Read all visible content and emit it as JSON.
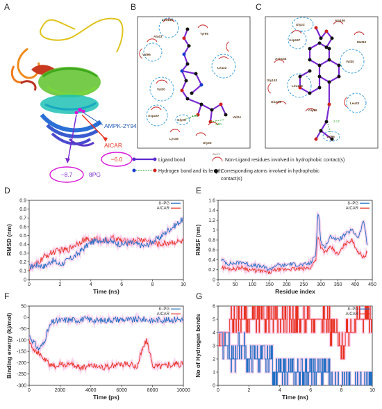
{
  "figure": {
    "panel_letters": [
      "A",
      "B",
      "C",
      "D",
      "E",
      "F",
      "G"
    ],
    "protein_labels": {
      "complex": "AMPK-2Y94",
      "ligand1": "AICAR",
      "ligand2": "8PG",
      "score1": "−6.0",
      "score2": "−8.7"
    },
    "panelB": {
      "residues": [
        "Leu146",
        "Tyr95",
        "Ala43",
        "Val96",
        "Leu22",
        "Val30",
        "Asp157",
        "Gly25",
        "Lys45",
        "Gly23",
        "Val24"
      ],
      "distances": [
        "2.98",
        "2.80"
      ]
    },
    "panelC": {
      "residues": [
        "Gly23",
        "Ala156",
        "Asp157",
        "Met93",
        "Asn144",
        "Val30",
        "Gly143",
        "Leu146",
        "Glu100",
        "Leu22",
        "Gly99",
        "Val96"
      ],
      "distances": [
        "3.17"
      ]
    },
    "key": {
      "ligand_bond": "Ligand bond",
      "hbond": "Hydrogen bond and its length",
      "nonligand": "Non-Ligand residues involved   in hydrophobic contact(s)",
      "nonligand_sample": "Glu 71",
      "atoms_line1": "Corresponding atoms involved in hydrophobic",
      "atoms_line2": "contact(s)"
    },
    "colors": {
      "pg8": "#1f6fc4",
      "aicar": "#e8301e"
    }
  },
  "chart_data": [
    {
      "panel": "D",
      "type": "line",
      "xlabel": "Time (ns)",
      "ylabel": "RMSD (nm)",
      "xlim": [
        0,
        10
      ],
      "ylim": [
        0,
        0.9
      ],
      "xticks": [
        0,
        2,
        4,
        6,
        8,
        10
      ],
      "yticks": [
        0,
        0.1,
        0.2,
        0.3,
        0.4,
        0.5,
        0.6,
        0.7,
        0.8,
        0.9
      ],
      "legend": "top-right",
      "series": [
        {
          "name": "8−PG",
          "color": "#1f6fc4",
          "x": [
            0,
            0.5,
            1,
            1.5,
            2,
            2.5,
            3,
            3.5,
            4,
            4.5,
            5,
            5.5,
            6,
            6.5,
            7,
            7.5,
            8,
            8.5,
            9,
            9.5,
            10
          ],
          "y": [
            0.14,
            0.17,
            0.15,
            0.22,
            0.17,
            0.22,
            0.27,
            0.35,
            0.42,
            0.45,
            0.45,
            0.42,
            0.4,
            0.42,
            0.4,
            0.38,
            0.43,
            0.48,
            0.56,
            0.62,
            0.69
          ]
        },
        {
          "name": "AICAR",
          "color": "#e8301e",
          "x": [
            0,
            0.5,
            1,
            1.5,
            2,
            2.5,
            3,
            3.5,
            4,
            4.5,
            5,
            5.5,
            6,
            6.5,
            7,
            7.5,
            8,
            8.5,
            9,
            9.5,
            10
          ],
          "y": [
            0.12,
            0.18,
            0.26,
            0.31,
            0.33,
            0.34,
            0.4,
            0.45,
            0.45,
            0.46,
            0.44,
            0.47,
            0.44,
            0.43,
            0.45,
            0.45,
            0.42,
            0.4,
            0.42,
            0.43,
            0.43
          ]
        }
      ]
    },
    {
      "panel": "E",
      "type": "line",
      "xlabel": "Residue index",
      "ylabel": "RMSF (nm)",
      "xlim": [
        0,
        450
      ],
      "ylim": [
        0,
        1.6
      ],
      "xticks": [
        0,
        50,
        100,
        150,
        200,
        250,
        300,
        350,
        400,
        450
      ],
      "yticks": [
        0,
        0.2,
        0.4,
        0.6,
        0.8,
        1.0,
        1.2,
        1.4,
        1.6
      ],
      "legend": "top-right",
      "series": [
        {
          "name": "8−PG",
          "color": "#1f6fc4",
          "x": [
            10,
            30,
            50,
            70,
            90,
            110,
            130,
            150,
            170,
            190,
            210,
            230,
            250,
            270,
            285,
            292,
            300,
            310,
            330,
            350,
            370,
            390,
            410,
            425,
            435
          ],
          "y": [
            0.4,
            0.32,
            0.33,
            0.36,
            0.3,
            0.28,
            0.26,
            0.2,
            0.3,
            0.28,
            0.32,
            0.3,
            0.3,
            0.33,
            0.5,
            1.45,
            0.75,
            0.65,
            0.88,
            0.8,
            0.9,
            1.0,
            0.85,
            1.2,
            0.7
          ]
        },
        {
          "name": "AICAR",
          "color": "#e8301e",
          "x": [
            10,
            30,
            50,
            70,
            90,
            110,
            130,
            150,
            170,
            190,
            210,
            230,
            250,
            270,
            285,
            292,
            300,
            310,
            330,
            350,
            370,
            390,
            410,
            425,
            435
          ],
          "y": [
            0.25,
            0.22,
            0.22,
            0.25,
            0.2,
            0.18,
            0.17,
            0.14,
            0.2,
            0.2,
            0.22,
            0.21,
            0.22,
            0.24,
            0.4,
            0.9,
            0.65,
            0.55,
            0.65,
            0.5,
            0.72,
            0.8,
            0.55,
            0.45,
            0.55
          ]
        }
      ]
    },
    {
      "panel": "F",
      "type": "line",
      "xlabel": "Time (ps)",
      "ylabel": "Binding energy (kj/mol)",
      "xlim": [
        0,
        10000
      ],
      "ylim": [
        -300,
        50
      ],
      "xticks": [
        0,
        2000,
        4000,
        6000,
        8000,
        10000
      ],
      "yticks": [
        -300,
        -250,
        -200,
        -150,
        -100,
        -50,
        0,
        50
      ],
      "legend": "top-right",
      "series": [
        {
          "name": "8−PG",
          "color": "#1f6fc4",
          "x": [
            0,
            300,
            600,
            900,
            1200,
            1500,
            2000,
            2500,
            3000,
            3500,
            4000,
            4500,
            5000,
            5500,
            6000,
            6500,
            7000,
            7500,
            8000,
            8500,
            9000,
            9500,
            10000
          ],
          "y": [
            -80,
            -110,
            -140,
            -120,
            -60,
            -20,
            -15,
            -10,
            -12,
            -8,
            -10,
            -15,
            -12,
            -10,
            -8,
            -12,
            -10,
            -8,
            -15,
            -10,
            -12,
            -8,
            -10
          ]
        },
        {
          "name": "AICAR",
          "color": "#e8301e",
          "x": [
            0,
            300,
            600,
            900,
            1200,
            1500,
            2000,
            2500,
            3000,
            3500,
            4000,
            4500,
            5000,
            5500,
            6000,
            6500,
            7000,
            7300,
            7600,
            8000,
            8500,
            9000,
            9500,
            10000
          ],
          "y": [
            -100,
            -140,
            -160,
            -180,
            -200,
            -215,
            -210,
            -205,
            -215,
            -220,
            -210,
            -215,
            -220,
            -212,
            -205,
            -210,
            -215,
            -150,
            -100,
            -210,
            -215,
            -210,
            -205,
            -210
          ]
        }
      ]
    },
    {
      "panel": "G",
      "type": "line",
      "xlabel": "Time (ns)",
      "ylabel": "No of Hydrogen bonds",
      "xlim": [
        0,
        10
      ],
      "ylim": [
        0,
        6
      ],
      "xticks": [
        0,
        2,
        4,
        6,
        8,
        10
      ],
      "yticks": [
        0,
        1,
        2,
        3,
        4,
        5,
        6
      ],
      "legend": "top-right",
      "series": [
        {
          "name": "8−PG",
          "color": "#1f6fc4",
          "x": [
            0,
            0.5,
            1,
            1.5,
            2,
            3,
            4,
            5,
            6,
            7,
            7.5,
            8,
            9,
            10
          ],
          "y": [
            4,
            3,
            2,
            3,
            2,
            2,
            1,
            1,
            1,
            1,
            0,
            0,
            0,
            0
          ]
        },
        {
          "name": "AICAR",
          "color": "#e8301e",
          "x": [
            0,
            0.5,
            1,
            2,
            3,
            4,
            5,
            6,
            7,
            7.5,
            8,
            8.5,
            9,
            10
          ],
          "y": [
            3,
            4,
            5,
            5,
            5,
            5,
            5,
            5,
            5,
            4,
            3,
            4,
            5,
            5
          ]
        }
      ]
    }
  ]
}
